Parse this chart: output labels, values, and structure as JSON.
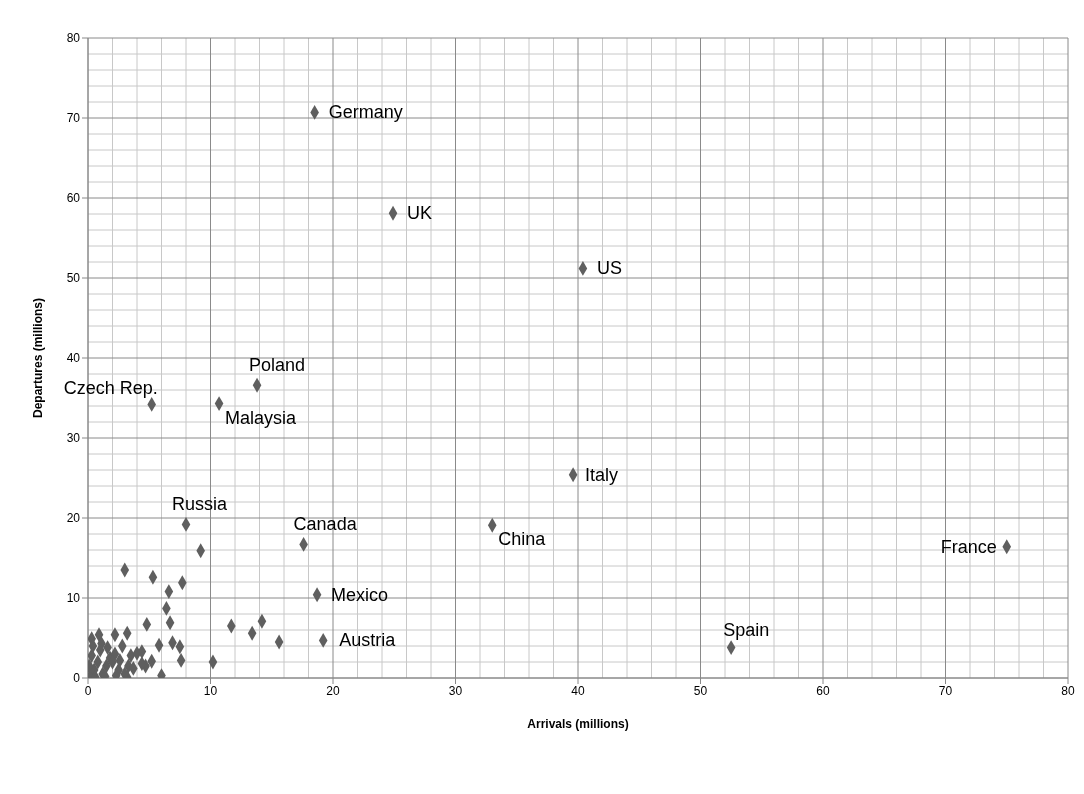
{
  "chart_data": {
    "type": "scatter",
    "xlabel": "Arrivals (millions)",
    "ylabel": "Departures (millions)",
    "xlim": [
      0,
      80
    ],
    "xticks": [
      0,
      10,
      20,
      30,
      40,
      50,
      60,
      70,
      80
    ],
    "ylim": [
      0,
      80
    ],
    "yticks": [
      0,
      10,
      20,
      30,
      40,
      50,
      60,
      70,
      80
    ],
    "grid": true,
    "marker": "diamond",
    "legend": false,
    "series": [
      {
        "color": "#5f5f5f",
        "x": [
          18.5,
          24.9,
          40.4,
          13.8,
          5.2,
          10.7,
          39.6,
          8.0,
          17.6,
          33.0,
          75.0,
          18.7,
          19.2,
          52.5,
          9.2,
          3.0,
          5.3,
          7.7,
          6.6,
          6.4,
          4.8,
          6.7,
          11.7,
          14.2,
          13.4,
          15.6,
          10.2,
          6.0,
          7.6,
          5.8,
          6.9,
          7.5,
          4.4,
          5.2,
          4.7,
          3.3,
          3.2,
          3.2,
          2.2,
          0.9,
          0.3,
          0.2,
          0.5,
          0.8,
          1.2,
          1.5,
          1.8,
          2.2,
          0.3,
          1.0,
          2.5,
          2.8,
          0.6,
          1.4,
          2.0,
          0.1,
          1.6,
          2.6,
          3.0,
          1.1,
          0.4,
          2.3,
          3.5,
          3.7,
          4.0,
          4.4
        ],
        "values": [
          70.7,
          58.1,
          51.2,
          36.6,
          34.2,
          34.3,
          25.4,
          19.2,
          16.7,
          19.1,
          16.4,
          10.4,
          4.7,
          3.8,
          15.9,
          13.5,
          12.6,
          11.9,
          10.8,
          8.7,
          6.7,
          6.9,
          6.5,
          7.1,
          5.6,
          4.5,
          2.0,
          0.3,
          2.2,
          4.1,
          4.4,
          3.9,
          3.3,
          2.1,
          1.5,
          1.5,
          0.1,
          5.6,
          5.4,
          5.4,
          4.9,
          0.3,
          1.0,
          2.0,
          0.5,
          1.5,
          2.5,
          3.0,
          2.8,
          3.5,
          1.0,
          4.0,
          0.1,
          0.2,
          2.0,
          1.5,
          3.8,
          2.2,
          0.5,
          4.3,
          4.0,
          0.3,
          2.8,
          1.2,
          3.1,
          1.8
        ]
      }
    ],
    "annotations": [
      {
        "text": "Germany",
        "x": 18.5,
        "y": 70.7
      },
      {
        "text": "UK",
        "x": 24.9,
        "y": 58.1
      },
      {
        "text": "US",
        "x": 40.4,
        "y": 51.2
      },
      {
        "text": "Poland",
        "x": 13.8,
        "y": 36.6
      },
      {
        "text": "Czech Rep.",
        "x": 5.2,
        "y": 34.2
      },
      {
        "text": "Malaysia",
        "x": 10.7,
        "y": 34.3
      },
      {
        "text": "Italy",
        "x": 39.6,
        "y": 25.4
      },
      {
        "text": "Russia",
        "x": 8.0,
        "y": 19.2
      },
      {
        "text": "Canada",
        "x": 17.6,
        "y": 16.7
      },
      {
        "text": "China",
        "x": 33.0,
        "y": 19.1
      },
      {
        "text": "France",
        "x": 75.0,
        "y": 16.4
      },
      {
        "text": "Mexico",
        "x": 18.7,
        "y": 10.4
      },
      {
        "text": "Austria",
        "x": 19.2,
        "y": 4.7
      },
      {
        "text": "Spain",
        "x": 52.5,
        "y": 3.8
      }
    ]
  }
}
